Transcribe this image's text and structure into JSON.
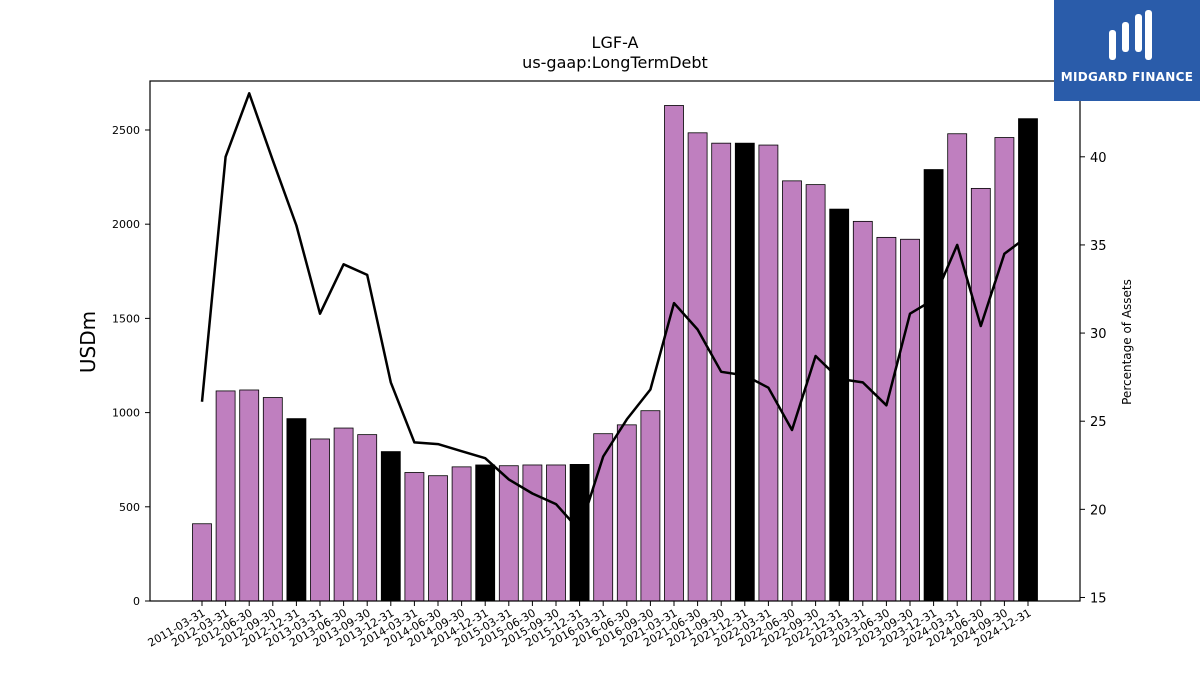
{
  "brand": {
    "name": "MIDGARD FINANCE",
    "logo_color": "#2a5caa"
  },
  "chart_data": {
    "type": "bar",
    "title": "LGF-A",
    "subtitle": "us-gaap:LongTermDebt",
    "ylabel": "USDm",
    "y2label": "Percentage of Assets",
    "ylim": [
      0,
      2760
    ],
    "y2lim": [
      14.8,
      44.3
    ],
    "yticks": [
      0,
      500,
      1000,
      1500,
      2000,
      2500
    ],
    "y2ticks": [
      15,
      20,
      25,
      30,
      35,
      40
    ],
    "colors": {
      "bar": "#bf7fbf",
      "bar_highlight": "#000000",
      "line": "#000000"
    },
    "categories": [
      "2011-03-31",
      "2012-03-31",
      "2012-06-30",
      "2012-09-30",
      "2012-12-31",
      "2013-03-31",
      "2013-06-30",
      "2013-09-30",
      "2013-12-31",
      "2014-03-31",
      "2014-06-30",
      "2014-09-30",
      "2014-12-31",
      "2015-03-31",
      "2015-06-30",
      "2015-09-30",
      "2015-12-31",
      "2016-03-31",
      "2016-06-30",
      "2016-09-30",
      "2021-03-31",
      "2021-06-30",
      "2021-09-30",
      "2021-12-31",
      "2022-03-31",
      "2022-06-30",
      "2022-09-30",
      "2022-12-31",
      "2023-03-31",
      "2023-06-30",
      "2023-09-30",
      "2023-12-31",
      "2024-03-31",
      "2024-06-30",
      "2024-09-30",
      "2024-12-31"
    ],
    "series": [
      {
        "type": "bar",
        "values": [
          410,
          1115,
          1120,
          1080,
          968,
          860,
          918,
          883,
          793,
          682,
          665,
          712,
          722,
          718,
          722,
          722,
          725,
          888,
          935,
          1010,
          2630,
          2485,
          2430,
          2430,
          2420,
          2230,
          2210,
          2080,
          2015,
          1930,
          1920,
          2290,
          2480,
          2190,
          2460,
          2560
        ],
        "highlight": [
          false,
          false,
          false,
          false,
          true,
          false,
          false,
          false,
          true,
          false,
          false,
          false,
          true,
          false,
          false,
          false,
          true,
          false,
          false,
          false,
          false,
          false,
          false,
          true,
          false,
          false,
          false,
          true,
          false,
          false,
          false,
          true,
          false,
          false,
          false,
          true
        ]
      },
      {
        "type": "line",
        "axis": "right",
        "values": [
          26.1,
          40.0,
          43.6,
          39.8,
          36.1,
          31.1,
          33.9,
          33.3,
          27.2,
          23.8,
          23.7,
          23.3,
          22.9,
          21.7,
          20.9,
          20.3,
          18.8,
          23.0,
          25.1,
          26.8,
          31.7,
          30.2,
          27.8,
          27.6,
          26.9,
          24.5,
          28.7,
          27.4,
          27.2,
          25.9,
          31.1,
          31.9,
          35.0,
          30.4,
          34.5,
          35.5
        ]
      }
    ]
  }
}
